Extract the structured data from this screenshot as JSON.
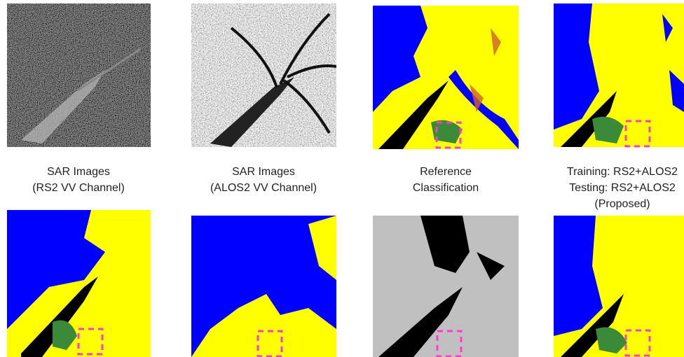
{
  "captions": [
    [
      "SAR Images",
      "(RS2 VV Channel)"
    ],
    [
      "SAR Images",
      "(ALOS2 VV Channel)"
    ],
    [
      "Reference",
      "Classification"
    ],
    [
      "Training: RS2+ALOS2",
      "Testing: RS2+ALOS2",
      "(Proposed)"
    ]
  ]
}
